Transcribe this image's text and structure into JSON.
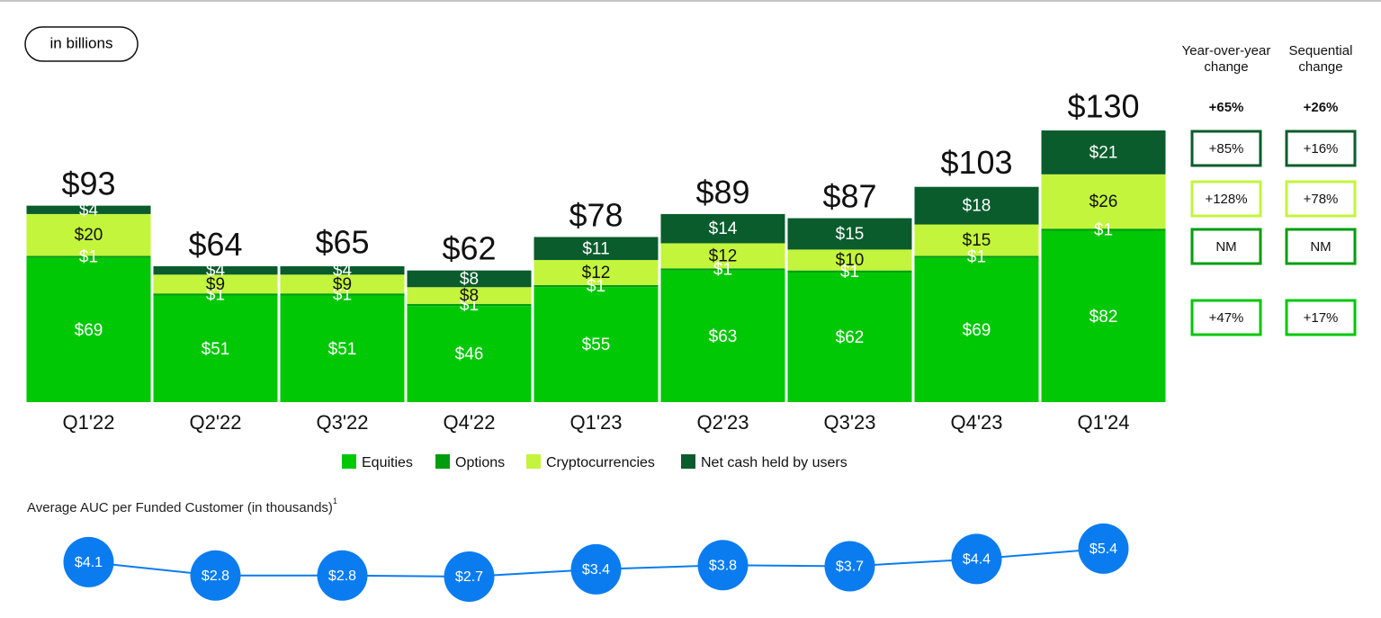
{
  "chart_data": [
    {
      "type": "stacked_bar",
      "unit_note": "in billions",
      "categories": [
        "Q1'22",
        "Q2'22",
        "Q3'22",
        "Q4'22",
        "Q1'23",
        "Q2'23",
        "Q3'23",
        "Q4'23",
        "Q1'24"
      ],
      "series": [
        {
          "name": "Equities",
          "color": "#00c805",
          "label_color": "#ffffff",
          "values": [
            69,
            51,
            51,
            46,
            55,
            63,
            62,
            69,
            82
          ],
          "value_labels": [
            "$69",
            "$51",
            "$51",
            "$46",
            "$55",
            "$63",
            "$62",
            "$69",
            "$82"
          ],
          "yoy_change": "+47%",
          "seq_change": "+17%"
        },
        {
          "name": "Options",
          "color": "#009e0f",
          "label_color": "#ffffff",
          "values": [
            1,
            1,
            1,
            1,
            1,
            1,
            1,
            1,
            1
          ],
          "value_labels": [
            "$1",
            "$1",
            "$1",
            "$1",
            "$1",
            "$1",
            "$1",
            "$1",
            "$1"
          ],
          "yoy_change": "NM",
          "seq_change": "NM"
        },
        {
          "name": "Cryptocurrencies",
          "color": "#c3f53c",
          "label_color": "#111111",
          "values": [
            20,
            9,
            9,
            8,
            12,
            12,
            10,
            15,
            26
          ],
          "value_labels": [
            "$20",
            "$9",
            "$9",
            "$8",
            "$12",
            "$12",
            "$10",
            "$15",
            "$26"
          ],
          "yoy_change": "+128%",
          "seq_change": "+78%"
        },
        {
          "name": "Net cash held by users",
          "color": "#0a5c2c",
          "label_color": "#ffffff",
          "values": [
            4,
            4,
            4,
            8,
            11,
            14,
            15,
            18,
            21
          ],
          "value_labels": [
            "$4",
            "$4",
            "$4",
            "$8",
            "$11",
            "$14",
            "$15",
            "$18",
            "$21"
          ],
          "yoy_change": "+85%",
          "seq_change": "+16%"
        }
      ],
      "totals": [
        93,
        64,
        65,
        62,
        78,
        89,
        87,
        103,
        130
      ],
      "total_labels": [
        "$93",
        "$64",
        "$65",
        "$62",
        "$78",
        "$89",
        "$87",
        "$103",
        "$130"
      ],
      "change_headers": [
        "Year-over-year change",
        "Sequential change"
      ],
      "total_changes": [
        "+65%",
        "+26%"
      ]
    },
    {
      "type": "line",
      "title": "Average AUC per Funded Customer (in thousands)",
      "title_note": "1",
      "color": "#0a7cf0",
      "values": [
        4.1,
        2.8,
        2.8,
        2.7,
        3.4,
        3.8,
        3.7,
        4.4,
        5.4
      ],
      "value_labels": [
        "$4.1",
        "$2.8",
        "$2.8",
        "$2.7",
        "$3.4",
        "$3.8",
        "$3.7",
        "$4.4",
        "$5.4"
      ]
    }
  ]
}
